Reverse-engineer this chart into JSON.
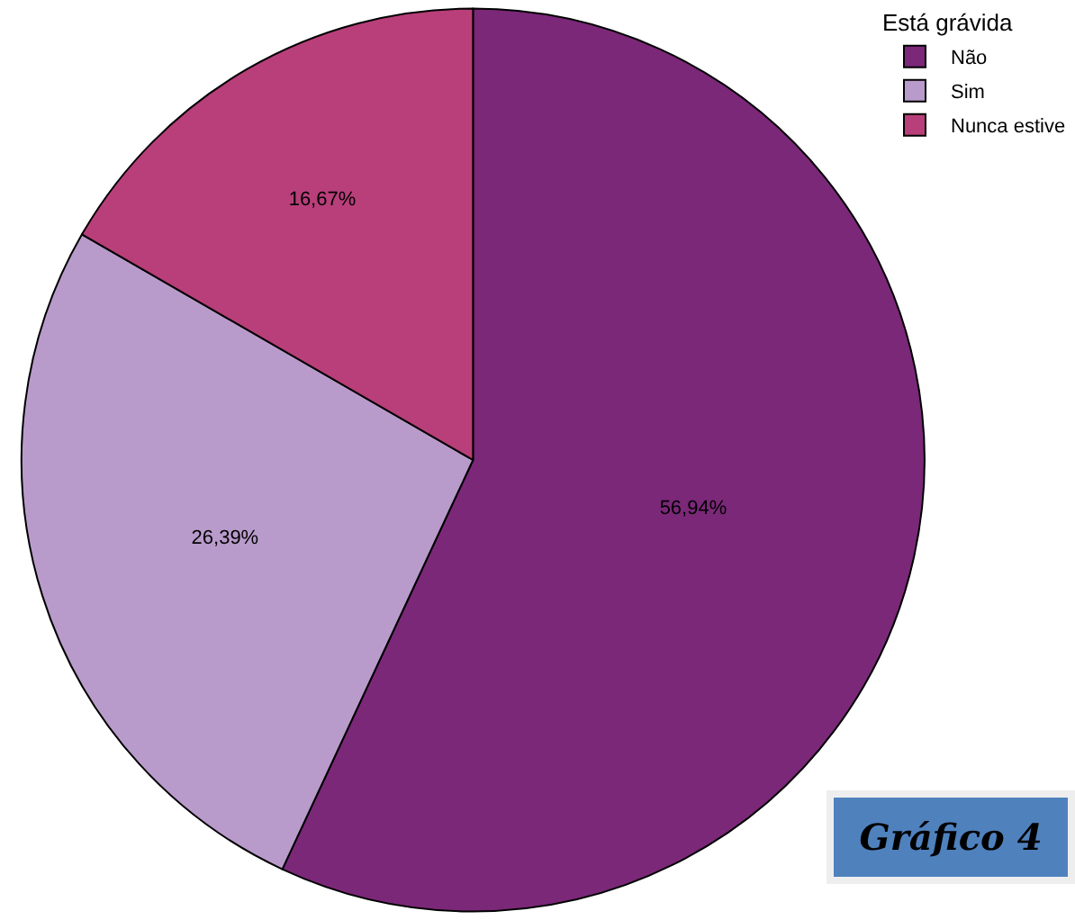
{
  "chart_data": {
    "type": "pie",
    "legend_title": "Está grávida",
    "legend": "top right",
    "categories": [
      "Não",
      "Sim",
      "Nunca estive"
    ],
    "values": [
      56.94,
      26.39,
      16.67
    ],
    "value_labels": [
      "56,94%",
      "26,39%",
      "16,67%"
    ],
    "colors": [
      "#7b2879",
      "#b89bcb",
      "#b83f7a"
    ],
    "annotations": [
      "Gráfico 4"
    ]
  }
}
